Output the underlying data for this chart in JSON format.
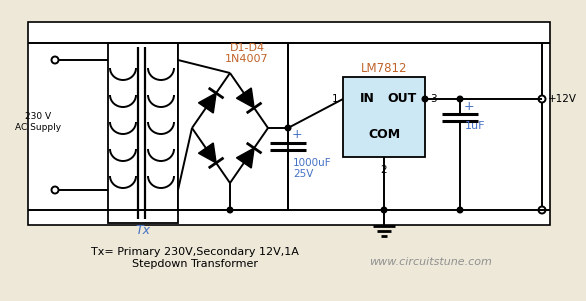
{
  "bg_color": "#ede8d8",
  "line_color": "#000000",
  "blue_color": "#4472c4",
  "orange_color": "#c0632a",
  "gray_color": "#909090",
  "lm_fill": "#cce8f4",
  "title_text": "Tx= Primary 230V,Secondary 12V,1A\nStepdown Transformer",
  "website_text": "www.circuitstune.com",
  "label_230v": "230 V\nAC Supply",
  "label_tx": "Tx",
  "label_d1d4": "D1-D4",
  "label_1n4007": "1N4007",
  "label_lm7812": "LM7812",
  "label_in": "IN",
  "label_out": "OUT",
  "label_com": "COM",
  "label_1": "1",
  "label_2": "2",
  "label_3": "3",
  "label_1000uf": "1000uF",
  "label_25v": "25V",
  "label_1uf": "1uF",
  "label_plus1": "+",
  "label_plus2": "+",
  "label_12v": "+12V"
}
